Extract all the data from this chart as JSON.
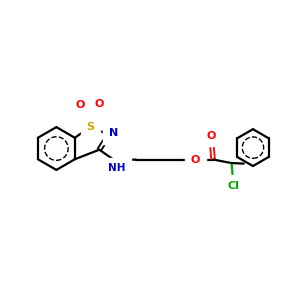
{
  "bg_color": "#ffffff",
  "atom_colors": {
    "C": "#000000",
    "N": "#0000cc",
    "O": "#ff0000",
    "S": "#ccaa00",
    "Cl": "#00aa00",
    "H": "#0000cc"
  },
  "bond_color": "#000000",
  "bond_width": 1.6,
  "figsize": [
    3.0,
    3.0
  ],
  "dpi": 100,
  "xlim": [
    0,
    10
  ],
  "ylim": [
    0,
    10
  ]
}
